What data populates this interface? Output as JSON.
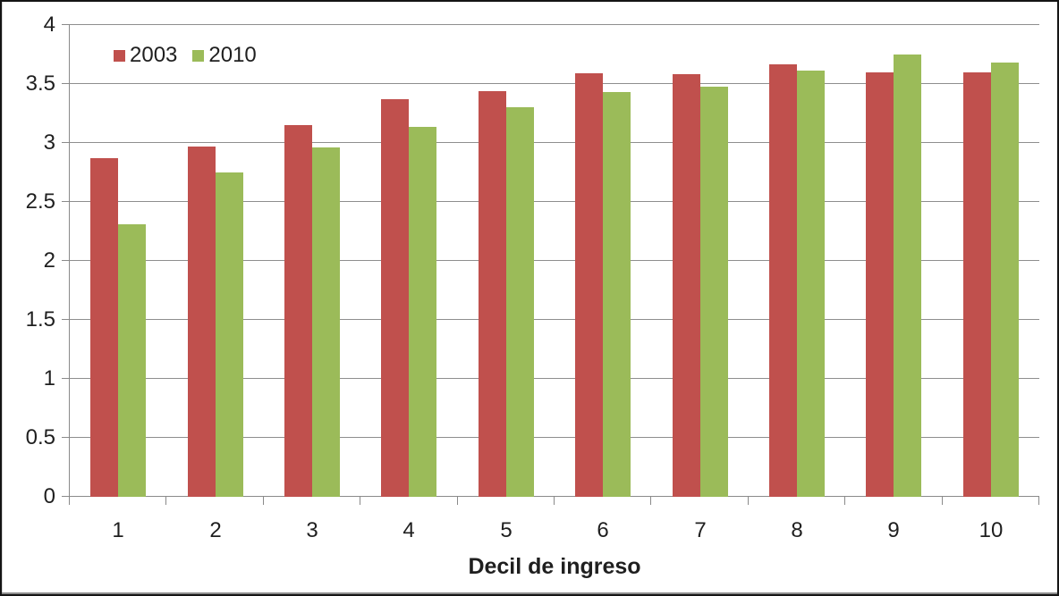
{
  "chart_data": {
    "type": "bar",
    "title": "",
    "xlabel": "Decil de ingreso",
    "ylabel": "",
    "categories": [
      "1",
      "2",
      "3",
      "4",
      "5",
      "6",
      "7",
      "8",
      "9",
      "10"
    ],
    "series": [
      {
        "name": "2003",
        "color": "#C0504D",
        "values": [
          2.87,
          2.97,
          3.15,
          3.37,
          3.44,
          3.59,
          3.58,
          3.67,
          3.6,
          3.6
        ]
      },
      {
        "name": "2010",
        "color": "#9BBB59",
        "values": [
          2.31,
          2.75,
          2.96,
          3.14,
          3.3,
          3.43,
          3.48,
          3.61,
          3.75,
          3.68
        ]
      }
    ],
    "ylim": [
      0,
      4
    ],
    "ytick_labels": [
      "0",
      "0.5",
      "1",
      "1.5",
      "2",
      "2.5",
      "3",
      "3.5",
      "4"
    ],
    "grid": true,
    "legend_position": "top-left"
  },
  "colors": {
    "series_2003": "#C0504D",
    "series_2010": "#9BBB59",
    "gridline": "#8E8E8E",
    "axis": "#8A8A8A",
    "text": "#1F1F1F",
    "frame_border": "#151515",
    "background": "#FFFFFF"
  }
}
